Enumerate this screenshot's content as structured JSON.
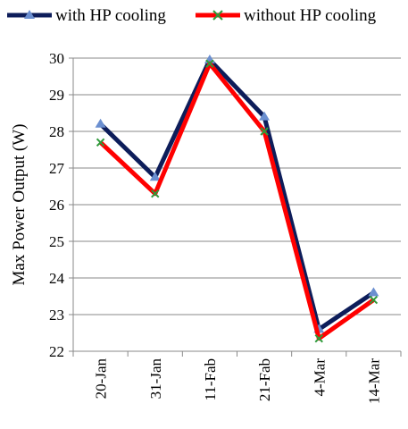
{
  "chart_data": {
    "type": "line",
    "title": "",
    "xlabel": "",
    "ylabel": "Max  Power Output (W)",
    "categories": [
      "20-Jan",
      "31-Jan",
      "11-Fab",
      "21-Fab",
      "4-Mar",
      "14-Mar"
    ],
    "ylim": [
      22,
      30
    ],
    "yticks": [
      22,
      23,
      24,
      25,
      26,
      27,
      28,
      29,
      30
    ],
    "grid": true,
    "legend_position": "top",
    "series": [
      {
        "name": "with HP cooling",
        "values": [
          28.2,
          26.75,
          29.95,
          28.4,
          22.6,
          23.6
        ],
        "color": "#0d1d5a",
        "marker": "triangle",
        "marker_color": "#6b8fd0"
      },
      {
        "name": "without HP cooling",
        "values": [
          27.7,
          26.3,
          29.85,
          28.0,
          22.35,
          23.4
        ],
        "color": "#ff0000",
        "marker": "x",
        "marker_color": "#2e9a3a"
      }
    ]
  }
}
